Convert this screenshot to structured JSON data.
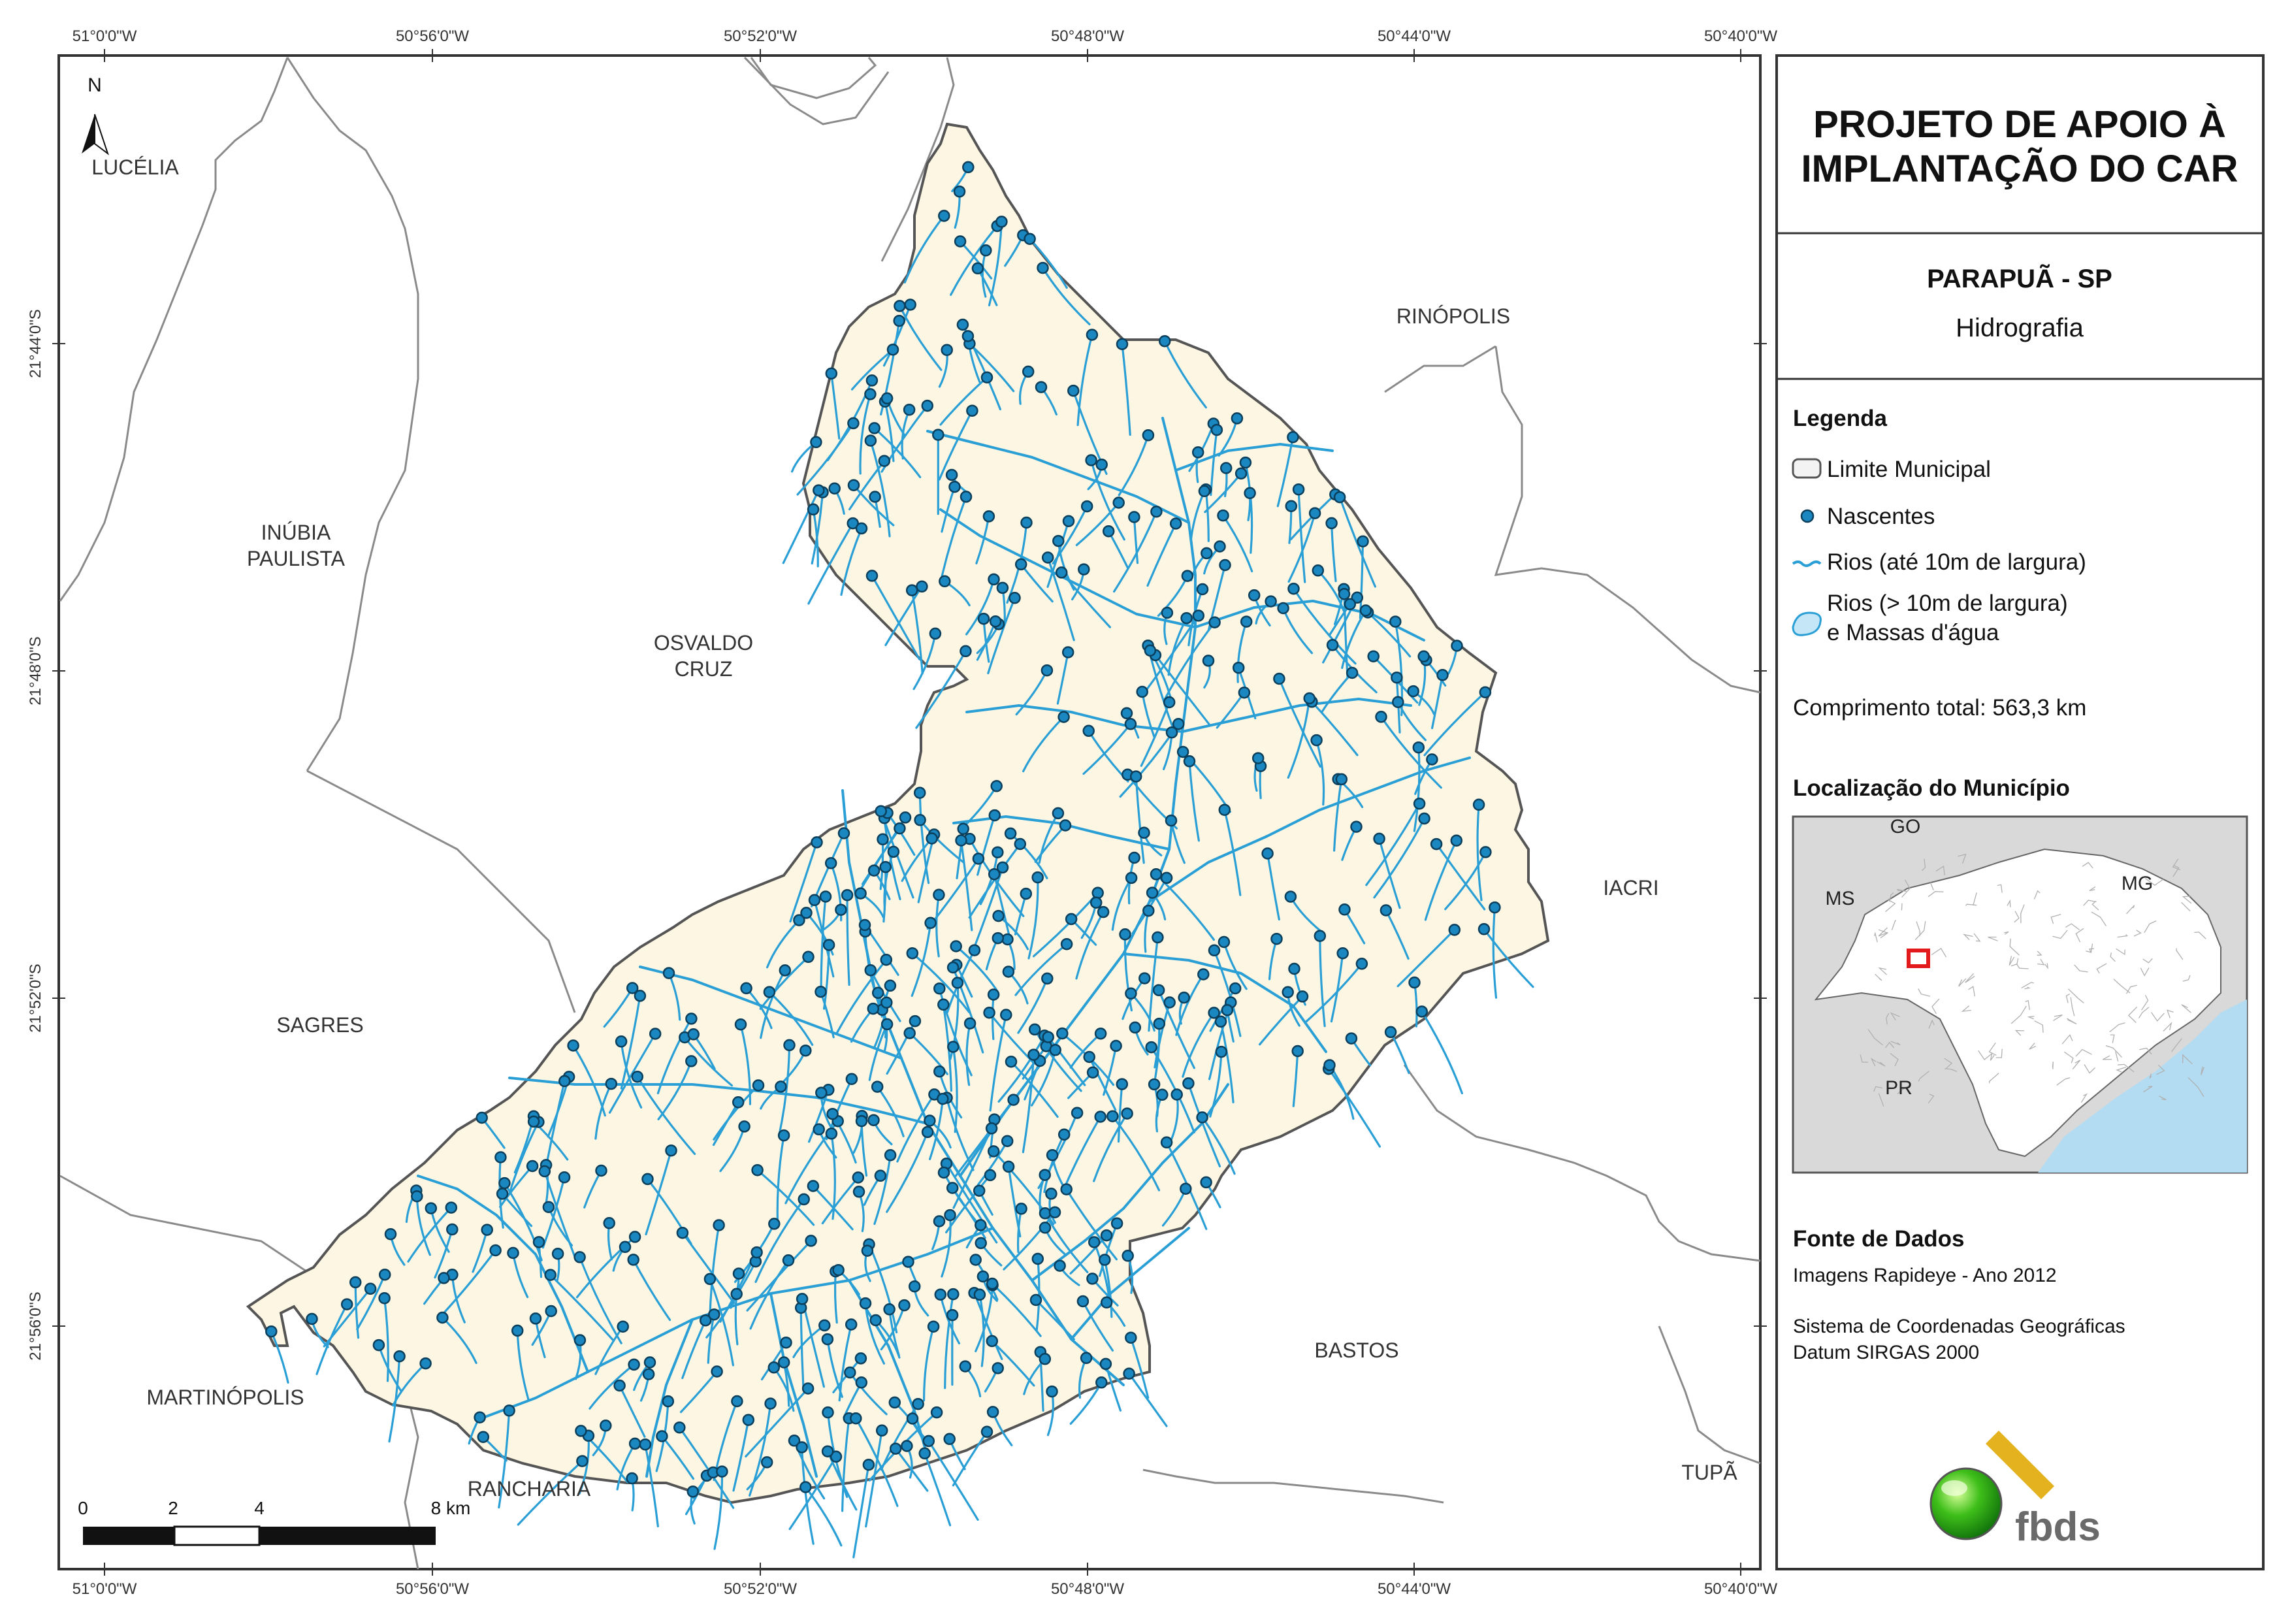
{
  "header": {
    "title_line1": "PROJETO DE APOIO À",
    "title_line2": "IMPLANTAÇÃO DO CAR",
    "municipality": "PARAPUÃ - SP",
    "theme": "Hidrografia"
  },
  "legend": {
    "heading": "Legenda",
    "items": [
      {
        "label": "Limite Municipal",
        "icon": "boundary-swatch-icon"
      },
      {
        "label": "Nascentes",
        "icon": "spring-point-icon"
      },
      {
        "label": "Rios (até 10m de largura)",
        "icon": "river-line-icon"
      },
      {
        "label": "Rios (> 10m de largura)",
        "label2": "e Massas d'água",
        "icon": "water-body-icon"
      }
    ],
    "total_length": "Comprimento total: 563,3 km"
  },
  "location": {
    "heading": "Localização do Município",
    "states": [
      "GO",
      "MS",
      "MG",
      "PR"
    ]
  },
  "source": {
    "heading": "Fonte de Dados",
    "line1": "Imagens Rapideye - Ano 2012",
    "line2": "Sistema de Coordenadas Geográficas",
    "line3": "Datum SIRGAS 2000"
  },
  "map": {
    "north": "N",
    "lon_labels": [
      "51°0'0\"W",
      "50°56'0\"W",
      "50°52'0\"W",
      "50°48'0\"W",
      "50°44'0\"W",
      "50°40'0\"W"
    ],
    "lat_labels": [
      "21°44'0\"S",
      "21°48'0\"S",
      "21°52'0\"S",
      "21°56'0\"S"
    ],
    "neighbors": {
      "lucelia": "LUCÉLIA",
      "rinopolis": "RINÓPOLIS",
      "inubia1": "INÚBIA",
      "inubia2": "PAULISTA",
      "osvaldo1": "OSVALDO",
      "osvaldo2": "CRUZ",
      "iacri": "IACRI",
      "sagres": "SAGRES",
      "bastos": "BASTOS",
      "martinopolis": "MARTINÓPOLIS",
      "rancharia": "RANCHARIA",
      "tupa": "TUPÃ"
    },
    "scale_labels": [
      "0",
      "2",
      "4",
      "8 km"
    ]
  },
  "logo": {
    "text": "fbds"
  },
  "colors": {
    "municipality_fill": "#fdf6e2",
    "river": "#2a9fd6",
    "spring": "#1a87c0",
    "frame": "#333333",
    "sea": "#b3dcf2",
    "highlight": "#e31a1c"
  }
}
